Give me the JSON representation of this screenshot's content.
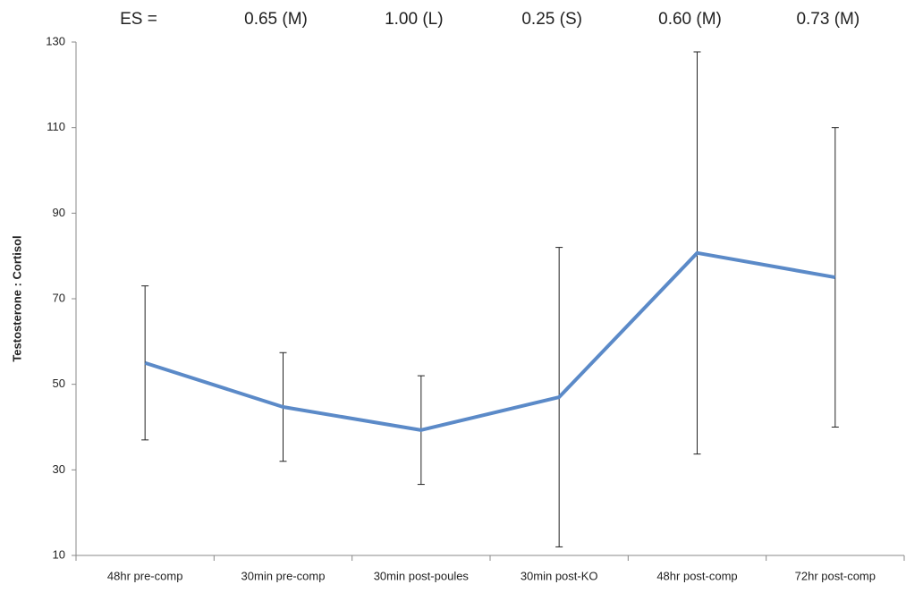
{
  "chart_data": {
    "type": "line",
    "y_label": "Testosterone : Cortisol",
    "annotation_label": "ES =",
    "effect_sizes": [
      null,
      "0.65 (M)",
      "1.00 (L)",
      "0.25 (S)",
      "0.60 (M)",
      "0.73 (M)"
    ],
    "categories": [
      "48hr pre-comp",
      "30min pre-comp",
      "30min post-poules",
      "30min post-KO",
      "48hr post-comp",
      "72hr post-comp"
    ],
    "series": [
      {
        "color": "#5b8ac8",
        "values": [
          55,
          44.7,
          39.3,
          47,
          80.7,
          75
        ],
        "errors": [
          18,
          12.7,
          12.7,
          35,
          47,
          35
        ]
      }
    ],
    "ylim": [
      10,
      130
    ],
    "yticks": [
      10,
      30,
      50,
      70,
      90,
      110,
      130
    ]
  }
}
